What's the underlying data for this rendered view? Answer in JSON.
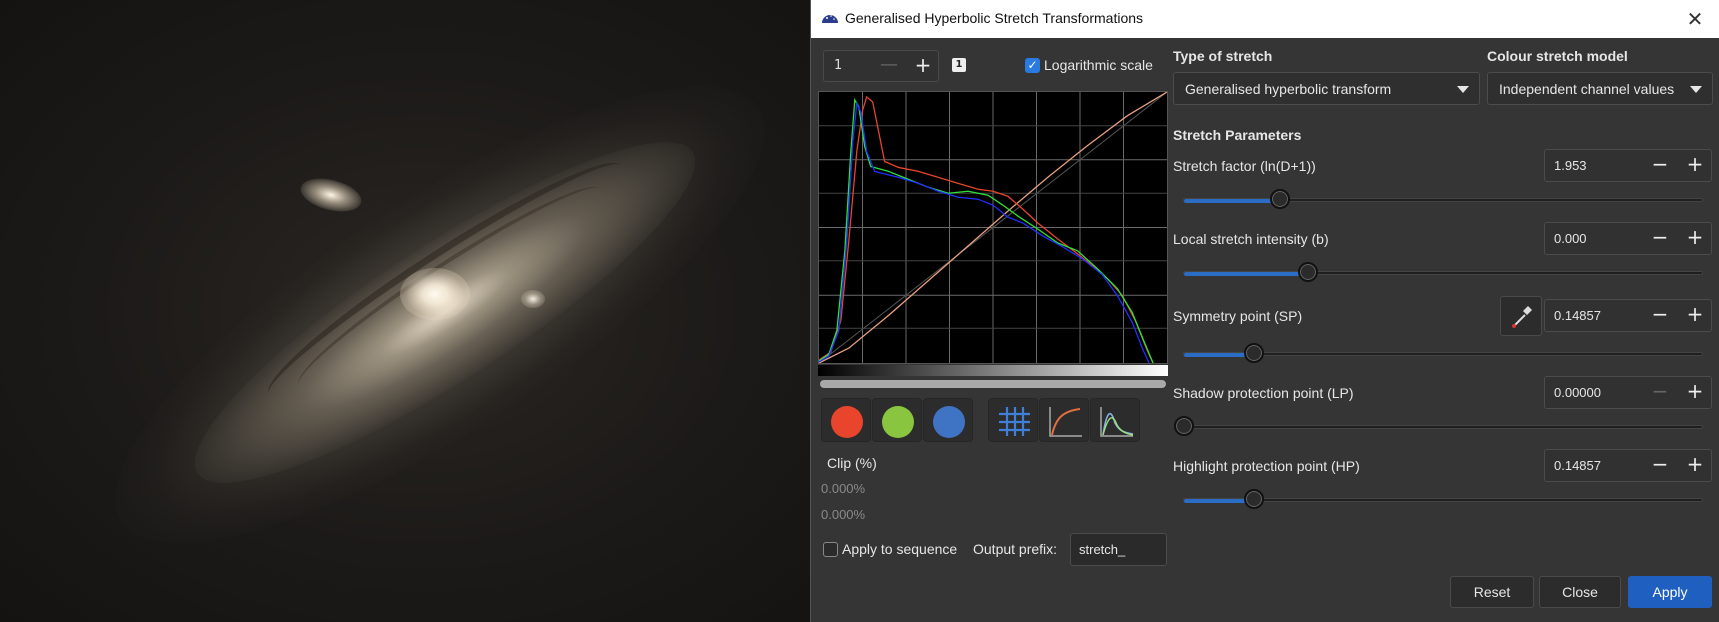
{
  "dialog": {
    "title": "Generalised Hyperbolic Stretch Transformations",
    "close_glyph": "✕"
  },
  "display": {
    "spin_value": "1",
    "spin_minus": "—",
    "spin_plus": "+",
    "badge": "1",
    "log_scale_label": "Logarithmic scale",
    "log_scale_checked": true,
    "checkmark": "✓"
  },
  "channels": {
    "red": "#e8452c",
    "green": "#8ac53f",
    "blue": "#3f73c4"
  },
  "clip": {
    "label": "Clip (%)",
    "low": "0.000%",
    "high": "0.000%"
  },
  "sequence": {
    "apply_label": "Apply to sequence",
    "output_prefix_label": "Output prefix:",
    "output_prefix_value": "stretch_"
  },
  "stretch_type": {
    "label": "Type of stretch",
    "value": "Generalised hyperbolic transform"
  },
  "colour_model": {
    "label": "Colour stretch model",
    "value": "Independent channel values"
  },
  "params": {
    "section_label": "Stretch Parameters",
    "stretch_factor": {
      "label": "Stretch factor (ln(D+1))",
      "value": "1.953",
      "slider": 0.2
    },
    "local_intensity": {
      "label": "Local stretch intensity (b)",
      "value": "0.000",
      "slider": 0.25
    },
    "symmetry_point": {
      "label": "Symmetry point (SP)",
      "value": "0.14857",
      "slider": 0.15
    },
    "shadow_protection": {
      "label": "Shadow protection point (LP)",
      "value": "0.00000",
      "slider": 0.0
    },
    "highlight_protection": {
      "label": "Highlight protection point (HP)",
      "value": "0.14857",
      "slider": 0.15
    }
  },
  "buttons": {
    "minus": "−",
    "plus": "+",
    "reset": "Reset",
    "close": "Close",
    "apply": "Apply"
  }
}
